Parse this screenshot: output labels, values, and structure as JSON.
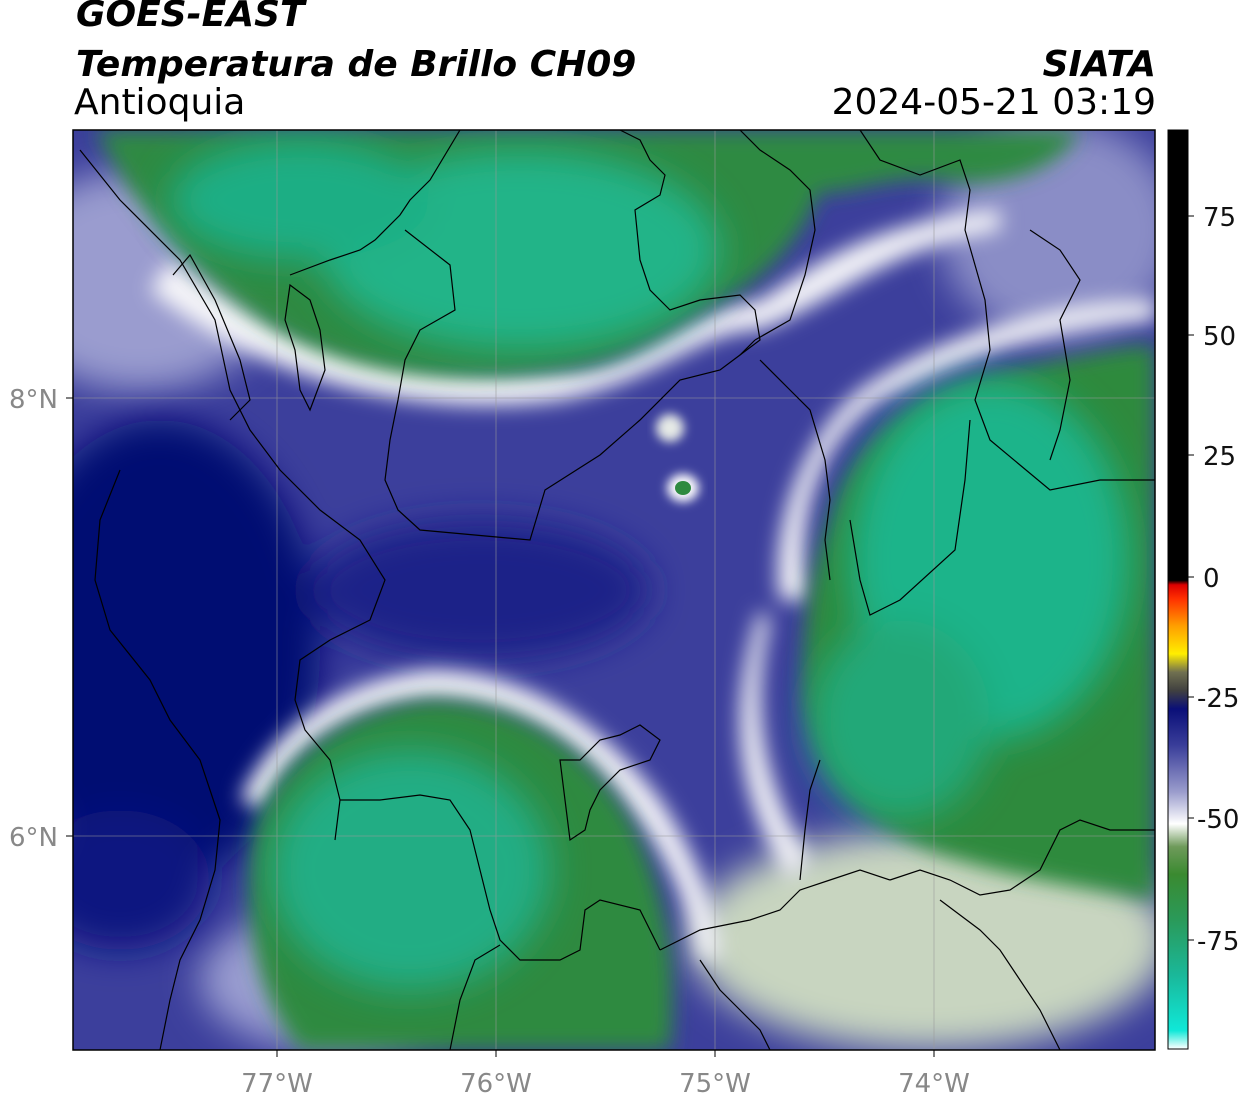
{
  "header": {
    "satellite": "GOES-EAST",
    "product": "Temperatura de Brillo CH09",
    "region": "Antioquia",
    "organization": "SIATA",
    "datetime": "2024-05-21 03:19"
  },
  "axes": {
    "x_ticks": [
      "77°W",
      "76°W",
      "75°W",
      "74°W"
    ],
    "y_ticks": [
      "8°N",
      "6°N"
    ]
  },
  "colorbar": {
    "ticks": [
      "75",
      "50",
      "25",
      "0",
      "-25",
      "-50",
      "-75"
    ],
    "colors": {
      "very_cold": "#1ad9c8",
      "cold_cloud_green": "#2e8b3a",
      "light_band": "#ffffff",
      "mid_blue": "#3b3f9e",
      "deep_blue": "#000a6e",
      "warm_yellow": "#ffe600",
      "warm_orange": "#ff9000",
      "warm_red": "#ff2000",
      "hot": "#000000"
    }
  }
}
